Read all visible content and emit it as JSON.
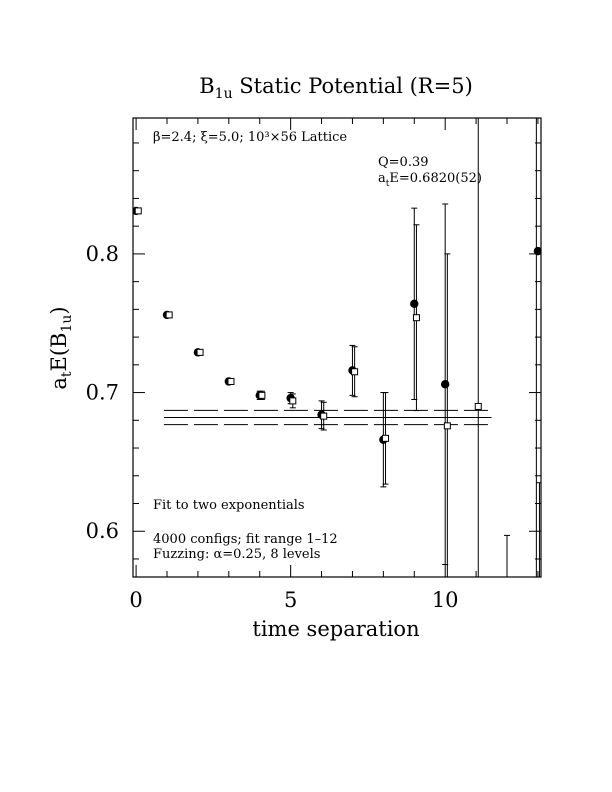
{
  "chart_data": {
    "type": "scatter",
    "title": "B1u Static Potential (R=5)",
    "title_parts": {
      "main": "B",
      "sub": "1u",
      "rest": " Static Potential (R=5)"
    },
    "xlabel": "time separation",
    "ylabel_parts": {
      "pre": "a",
      "sub1": "t",
      "mid": "E(B",
      "sub2": "1u",
      "post": ")"
    },
    "xlim": [
      -0.1,
      13.1
    ],
    "ylim": [
      0.567,
      0.898
    ],
    "x_ticks": [
      0,
      5,
      10
    ],
    "y_ticks": [
      0.6,
      0.7,
      0.8
    ],
    "x_tick_labels": [
      "0",
      "5",
      "10"
    ],
    "y_tick_labels": [
      "0.6",
      "0.7",
      "0.8"
    ],
    "grid": false,
    "annotations": {
      "lattice": "β=2.4; ξ=5.0; 10³×56 Lattice",
      "q": "Q=0.39",
      "energy_pre": "a",
      "energy_sub": "t",
      "energy_post": "E=0.6820(52)",
      "fit": "Fit to two exponentials",
      "configs": "4000 configs; fit range 1–12",
      "fuzzing": "Fuzzing: α=0.25, 8 levels"
    },
    "fit_band": {
      "x": [
        0.9,
        11.5
      ],
      "center": 0.682,
      "lower": 0.6769,
      "upper": 0.6872
    },
    "series": [
      {
        "name": "filled circles",
        "marker": "circle-filled",
        "x": [
          0,
          1,
          2,
          3,
          4,
          5,
          6,
          7,
          8,
          9,
          10,
          13
        ],
        "y": [
          0.831,
          0.756,
          0.729,
          0.708,
          0.698,
          0.696,
          0.684,
          0.716,
          0.666,
          0.764,
          0.706,
          0.802
        ],
        "err": [
          0.001,
          0.001,
          0.002,
          0.002,
          0.003,
          0.004,
          0.01,
          0.018,
          0.034,
          0.069,
          0.13,
          0.0
        ]
      },
      {
        "name": "open squares",
        "marker": "square-open",
        "x": [
          0.07,
          1.07,
          2.07,
          3.07,
          4.07,
          5.07,
          6.07,
          7.07,
          8.07,
          9.07,
          10.07,
          11.07
        ],
        "y": [
          0.831,
          0.756,
          0.729,
          0.708,
          0.698,
          0.694,
          0.683,
          0.715,
          0.667,
          0.754,
          0.676,
          0.69
        ],
        "err": [
          0.001,
          0.001,
          0.002,
          0.002,
          0.003,
          0.005,
          0.01,
          0.018,
          0.033,
          0.067,
          0.124,
          0.23
        ]
      },
      {
        "name": "edge error bars",
        "marker": "none",
        "x": [
          12.0,
          12.95,
          13.05
        ],
        "y": [
          0.55,
          0.78,
          0.57
        ],
        "err": [
          0.047,
          0.3,
          0.065
        ]
      }
    ]
  }
}
